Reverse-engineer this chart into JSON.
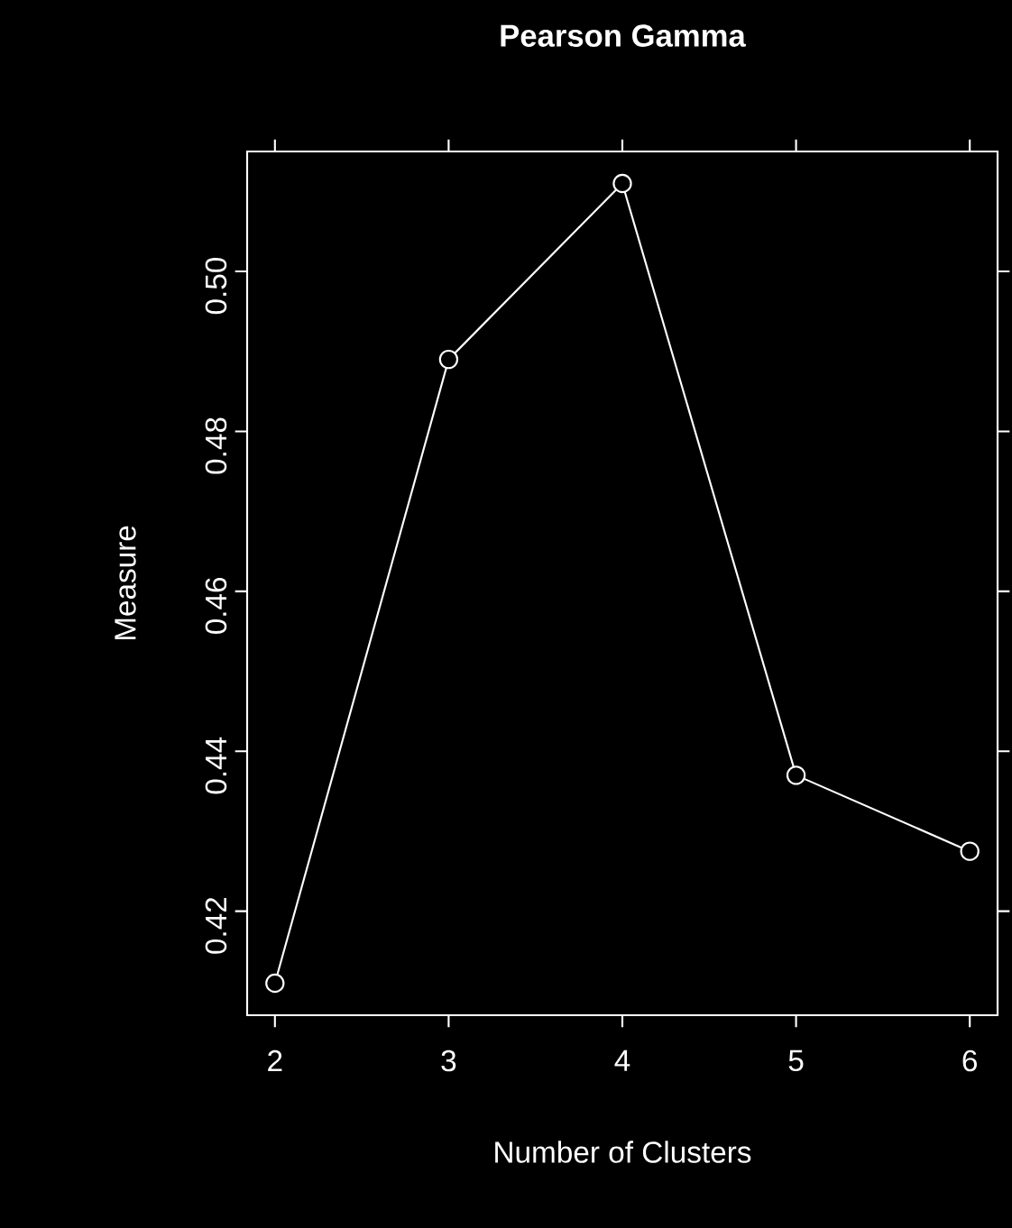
{
  "chart_data": {
    "type": "line",
    "title": "Pearson Gamma",
    "xlabel": "Number of Clusters",
    "ylabel": "Measure",
    "x": [
      2,
      3,
      4,
      5,
      6
    ],
    "values": [
      0.411,
      0.489,
      0.511,
      0.437,
      0.4275
    ],
    "color": "#ffffff",
    "marker": "circle",
    "line_style": "solid",
    "xlim": [
      1.84,
      6.16
    ],
    "ylim": [
      0.407,
      0.515
    ],
    "xticks": [
      2,
      3,
      4,
      5,
      6
    ],
    "yticks": [
      {
        "value": 0.42,
        "label": "0.42"
      },
      {
        "value": 0.44,
        "label": "0.44"
      },
      {
        "value": 0.46,
        "label": "0.46"
      },
      {
        "value": 0.48,
        "label": "0.48"
      },
      {
        "value": 0.5,
        "label": "0.50"
      }
    ]
  }
}
